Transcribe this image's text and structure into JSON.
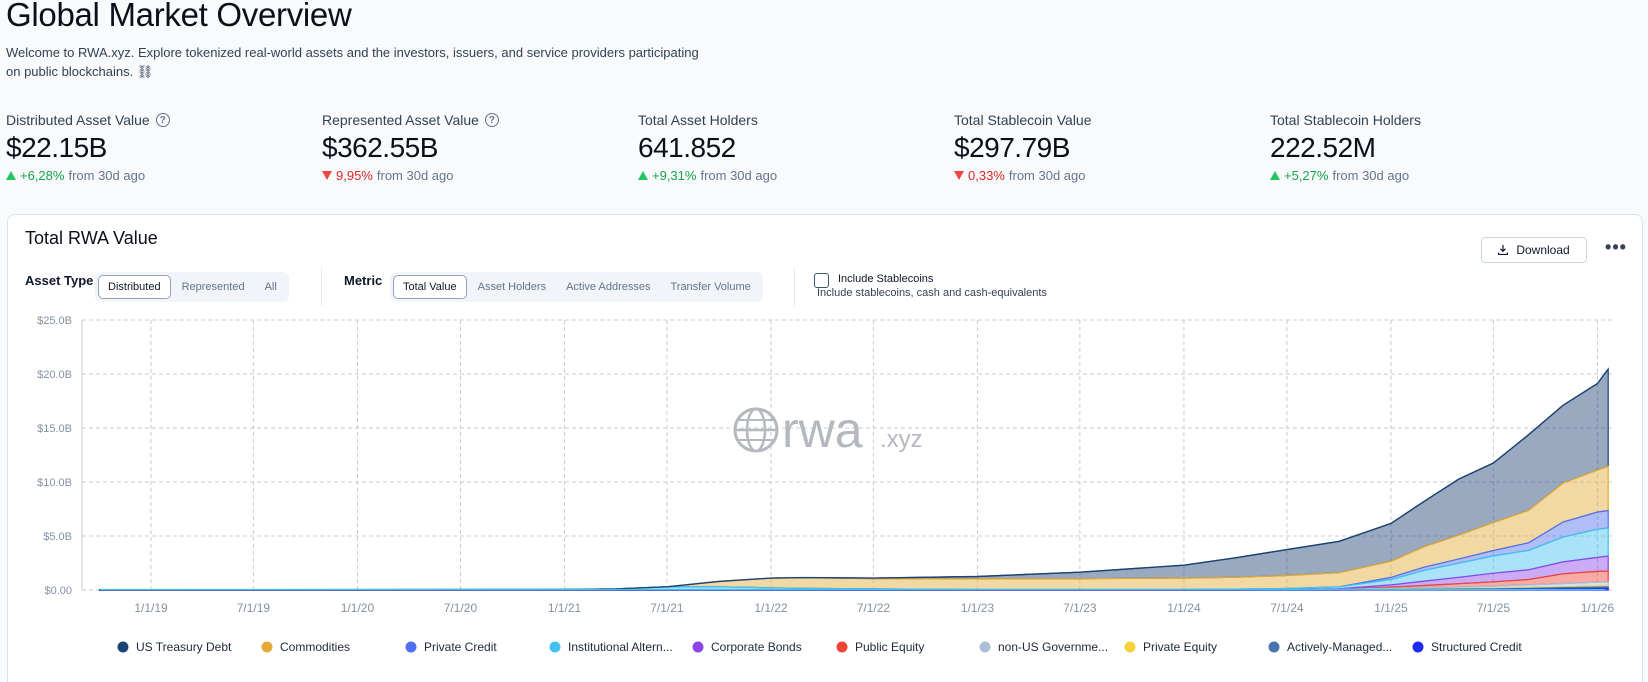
{
  "header": {
    "title": "Global Market Overview",
    "intro": "Welcome to RWA.xyz. Explore tokenized real-world assets and the investors, issuers, and service providers participating on public blockchains. ⛓"
  },
  "stats": [
    {
      "label": "Distributed Asset Value",
      "value": "$22.15B",
      "change": "+6,28%",
      "suffix": "from 30d ago",
      "direction": "up",
      "help": true
    },
    {
      "label": "Represented Asset Value",
      "value": "$362.55B",
      "change": "9,95%",
      "suffix": "from 30d ago",
      "direction": "down",
      "help": true
    },
    {
      "label": "Total Asset Holders",
      "value": "641.852",
      "change": "+9,31%",
      "suffix": "from 30d ago",
      "direction": "up",
      "help": false
    },
    {
      "label": "Total Stablecoin Value",
      "value": "$297.79B",
      "change": "0,33%",
      "suffix": "from 30d ago",
      "direction": "down",
      "help": false
    },
    {
      "label": "Total Stablecoin Holders",
      "value": "222.52M",
      "change": "+5,27%",
      "suffix": "from 30d ago",
      "direction": "up",
      "help": false
    }
  ],
  "card": {
    "title": "Total RWA Value",
    "download_label": "Download",
    "more_label": "•••",
    "asset_type_label": "Asset Type",
    "asset_types": [
      "Distributed",
      "Represented",
      "All"
    ],
    "asset_type_selected": "Distributed",
    "metric_label": "Metric",
    "metrics": [
      "Total Value",
      "Asset Holders",
      "Active Addresses",
      "Transfer Volume"
    ],
    "metric_selected": "Total Value",
    "include_stablecoins_label": "Include Stablecoins",
    "include_stablecoins_sub": "Include stablecoins, cash and cash-equivalents",
    "include_stablecoins_checked": false,
    "watermark": "rwa",
    "watermark_suffix": ".xyz"
  },
  "chart_data": {
    "type": "area",
    "title": "Total RWA Value",
    "stacked": true,
    "grid": true,
    "ylim": [
      0,
      25
    ],
    "y_unit": "B",
    "y_ticks": [
      "$0.00",
      "$5.0B",
      "$10.0B",
      "$15.0B",
      "$20.0B",
      "$25.0B"
    ],
    "x_ticks": [
      "1/1/19",
      "7/1/19",
      "1/1/20",
      "7/1/20",
      "1/1/21",
      "7/1/21",
      "1/1/22",
      "7/1/22",
      "1/1/23",
      "7/1/23",
      "1/1/24",
      "7/1/24",
      "1/1/25",
      "7/1/25",
      "1/1/26"
    ],
    "x_range": [
      "2018-09-01",
      "2026-02-01"
    ],
    "legend_position": "bottom",
    "x": [
      "2018-10-01",
      "2021-01-01",
      "2021-04-01",
      "2021-07-01",
      "2021-10-01",
      "2022-01-01",
      "2022-03-01",
      "2022-07-01",
      "2023-01-01",
      "2023-07-01",
      "2024-01-01",
      "2024-04-01",
      "2024-07-01",
      "2024-10-01",
      "2025-01-01",
      "2025-03-01",
      "2025-05-01",
      "2025-07-01",
      "2025-09-01",
      "2025-11-01",
      "2026-01-01",
      "2026-01-20"
    ],
    "series": [
      {
        "name": "Structured Credit",
        "color": "#1d2cf0",
        "values": [
          0,
          0,
          0,
          0,
          0,
          0,
          0,
          0,
          0,
          0,
          0,
          0,
          0,
          0,
          0.02,
          0.03,
          0.04,
          0.05,
          0.08,
          0.12,
          0.15,
          0.16
        ]
      },
      {
        "name": "Actively-Managed...",
        "color": "#4a74b0",
        "values": [
          0,
          0,
          0,
          0,
          0,
          0,
          0,
          0,
          0,
          0,
          0,
          0,
          0,
          0,
          0.03,
          0.04,
          0.05,
          0.06,
          0.08,
          0.1,
          0.12,
          0.13
        ]
      },
      {
        "name": "Private Equity",
        "color": "#f5d33a",
        "values": [
          0,
          0,
          0,
          0,
          0,
          0,
          0,
          0,
          0,
          0,
          0,
          0,
          0,
          0,
          0.02,
          0.03,
          0.04,
          0.05,
          0.06,
          0.08,
          0.1,
          0.1
        ]
      },
      {
        "name": "non-US Governme...",
        "color": "#a9bfd6",
        "values": [
          0,
          0,
          0,
          0,
          0,
          0,
          0,
          0,
          0,
          0,
          0,
          0,
          0.02,
          0.05,
          0.1,
          0.12,
          0.15,
          0.2,
          0.25,
          0.3,
          0.35,
          0.36
        ]
      },
      {
        "name": "Public Equity",
        "color": "#ef4535",
        "values": [
          0,
          0,
          0,
          0,
          0,
          0,
          0,
          0,
          0,
          0,
          0,
          0,
          0,
          0,
          0.1,
          0.2,
          0.3,
          0.4,
          0.5,
          0.9,
          1.0,
          1.0
        ]
      },
      {
        "name": "Corporate Bonds",
        "color": "#8b45e8",
        "values": [
          0,
          0,
          0,
          0,
          0,
          0,
          0,
          0,
          0,
          0,
          0,
          0,
          0.02,
          0.05,
          0.2,
          0.4,
          0.6,
          0.8,
          0.9,
          1.1,
          1.3,
          1.4
        ]
      },
      {
        "name": "Institutional Altern...",
        "color": "#43c0ee",
        "values": [
          0.02,
          0.05,
          0.1,
          0.3,
          0.3,
          0.2,
          0.15,
          0.1,
          0.05,
          0.05,
          0.05,
          0.08,
          0.1,
          0.2,
          0.5,
          1.0,
          1.3,
          1.6,
          1.8,
          2.3,
          2.6,
          2.6
        ]
      },
      {
        "name": "Private Credit",
        "color": "#4f6ef0",
        "values": [
          0,
          0,
          0,
          0,
          0,
          0,
          0,
          0,
          0,
          0,
          0,
          0,
          0,
          0,
          0.2,
          0.3,
          0.4,
          0.5,
          0.7,
          1.4,
          1.6,
          1.6
        ]
      },
      {
        "name": "Commodities",
        "color": "#e3aa35",
        "values": [
          0,
          0,
          0,
          0,
          0.5,
          0.9,
          1.0,
          0.95,
          1.0,
          1.0,
          1.05,
          1.1,
          1.2,
          1.3,
          1.5,
          1.9,
          2.2,
          2.6,
          3.0,
          3.6,
          3.9,
          4.1
        ]
      },
      {
        "name": "US Treasury Debt",
        "color": "#1d4373",
        "values": [
          0,
          0,
          0,
          0,
          0,
          0,
          0,
          0.05,
          0.2,
          0.6,
          1.2,
          1.8,
          2.4,
          2.9,
          3.5,
          4.2,
          5.2,
          5.5,
          7.0,
          7.2,
          8.0,
          9.0
        ]
      }
    ]
  }
}
